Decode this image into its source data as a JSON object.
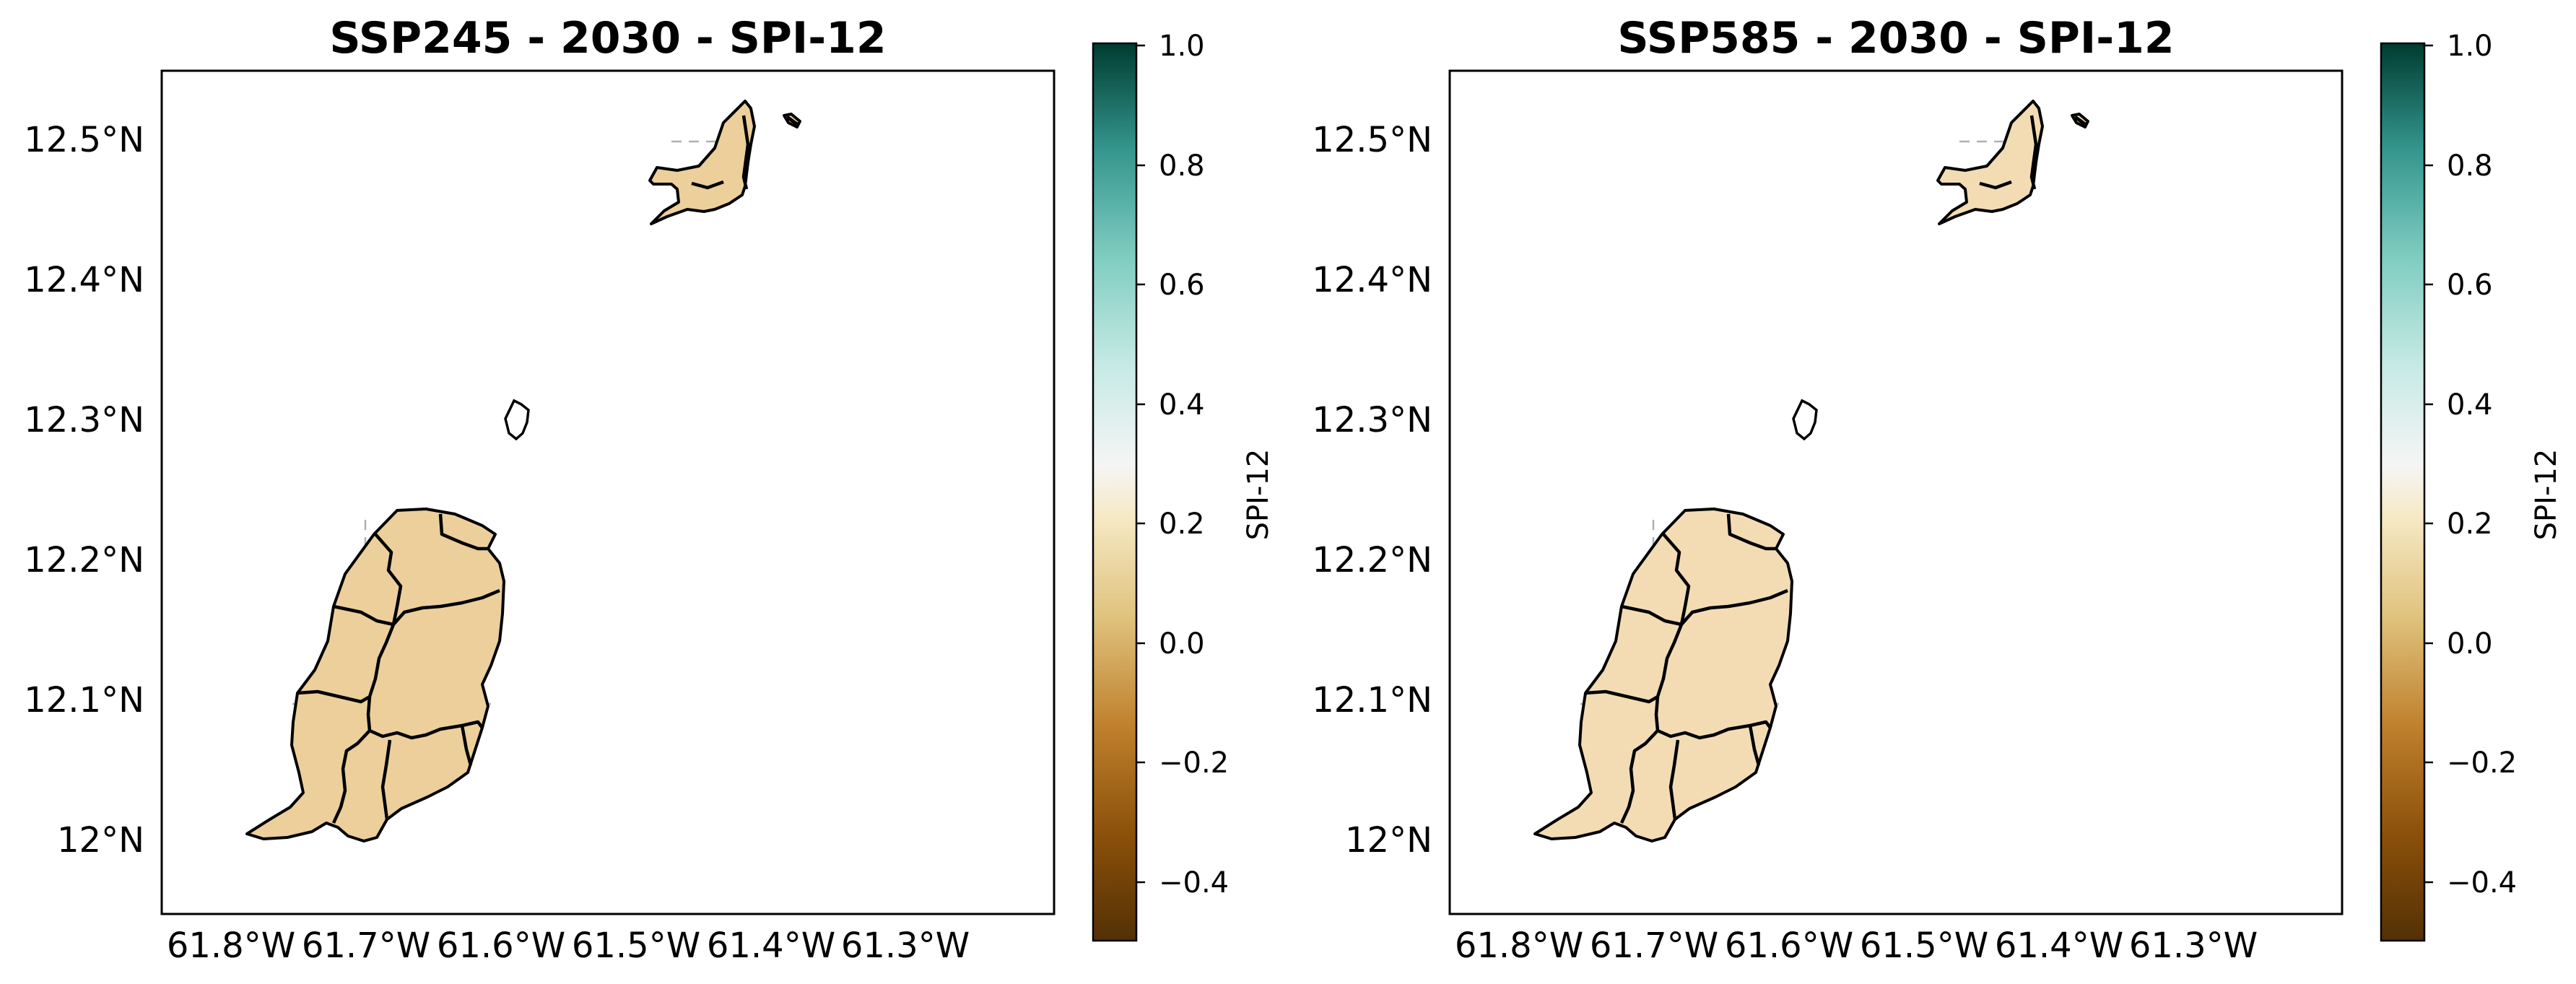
{
  "maps": [
    {
      "title": "SSP245 - 2030 - SPI-12",
      "fill_color": "#eccf9a",
      "lat_ticks": [
        "12.5°N",
        "12.4°N",
        "12.3°N",
        "12.2°N",
        "12.1°N",
        "12°N"
      ],
      "lon_ticks": [
        "61.8°W",
        "61.7°W",
        "61.6°W",
        "61.5°W",
        "61.4°W",
        "61.3°W"
      ],
      "colorbar": {
        "label": "SPI-12",
        "ticks": [
          "1.0",
          "0.8",
          "0.6",
          "0.4",
          "0.2",
          "0.0",
          "−0.2",
          "−0.4"
        ],
        "range": [
          -0.5,
          1.0
        ],
        "colormap": "BrBG"
      }
    },
    {
      "title": "SSP585 - 2030 - SPI-12",
      "fill_color": "#f3dcb4",
      "lat_ticks": [
        "12.5°N",
        "12.4°N",
        "12.3°N",
        "12.2°N",
        "12.1°N",
        "12°N"
      ],
      "lon_ticks": [
        "61.8°W",
        "61.7°W",
        "61.6°W",
        "61.5°W",
        "61.4°W",
        "61.3°W"
      ],
      "colorbar": {
        "label": "SPI-12",
        "ticks": [
          "1.0",
          "0.8",
          "0.6",
          "0.4",
          "0.2",
          "0.0",
          "−0.2",
          "−0.4"
        ],
        "range": [
          -0.5,
          1.0
        ],
        "colormap": "BrBG"
      }
    }
  ]
}
